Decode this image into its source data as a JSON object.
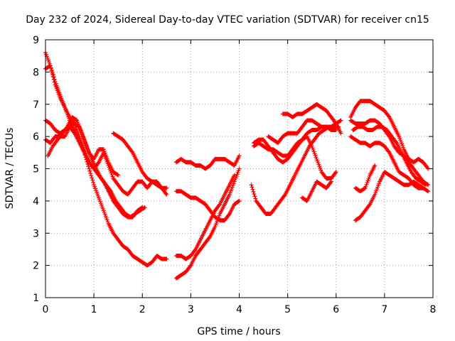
{
  "chart_data": {
    "type": "scatter",
    "title": "Day 232 of 2024, Sidereal Day-to-day VTEC variation (SDTVAR) for receiver cn15",
    "xlabel": "GPS time / hours",
    "ylabel": "SDTVAR / TECUs",
    "xlim": [
      0,
      8
    ],
    "ylim": [
      1,
      9
    ],
    "xticks": [
      "0",
      "1",
      "2",
      "3",
      "4",
      "5",
      "6",
      "7",
      "8"
    ],
    "yticks": [
      "1",
      "2",
      "3",
      "4",
      "5",
      "6",
      "7",
      "8",
      "9"
    ],
    "grid": true,
    "marker": "plus",
    "color": "#ff0000",
    "series": [
      {
        "x": [
          0.0,
          0.1,
          0.2,
          0.3,
          0.4,
          0.5,
          0.6,
          0.7,
          0.8,
          0.9,
          1.0,
          1.1,
          1.2,
          1.3,
          1.4,
          1.5,
          1.6,
          1.7,
          1.8,
          1.9,
          2.0,
          2.1,
          2.2,
          2.3,
          2.4,
          2.5
        ],
        "y": [
          8.6,
          8.2,
          7.7,
          7.3,
          6.9,
          6.5,
          6.2,
          5.9,
          5.5,
          5.0,
          4.5,
          4.1,
          3.7,
          3.3,
          3.0,
          2.8,
          2.6,
          2.5,
          2.3,
          2.2,
          2.1,
          2.0,
          2.1,
          2.3,
          2.2,
          2.2
        ]
      },
      {
        "x": [
          0.0,
          0.1,
          0.2,
          0.3,
          0.4,
          0.5,
          0.6,
          0.7,
          0.8,
          0.9,
          1.0,
          1.1,
          1.2,
          1.3,
          1.4,
          1.5,
          1.6,
          1.7,
          1.8,
          1.9,
          2.0
        ],
        "y": [
          8.1,
          8.2,
          7.6,
          7.2,
          6.9,
          6.6,
          6.4,
          6.0,
          5.6,
          5.2,
          5.0,
          4.8,
          4.6,
          4.3,
          4.0,
          3.8,
          3.6,
          3.5,
          3.5,
          3.7,
          3.8
        ]
      },
      {
        "x": [
          0.0,
          0.1,
          0.2,
          0.3,
          0.4,
          0.5,
          0.6,
          0.7,
          0.8,
          0.9,
          1.0,
          1.1,
          1.2,
          1.3,
          1.4,
          1.5,
          1.6,
          1.7,
          1.8,
          1.9,
          2.0,
          2.1,
          2.2,
          2.3,
          2.4,
          2.5
        ],
        "y": [
          6.5,
          6.4,
          6.2,
          6.1,
          6.2,
          6.3,
          6.1,
          5.8,
          5.5,
          5.2,
          5.0,
          5.2,
          5.5,
          5.1,
          4.7,
          4.5,
          4.3,
          4.2,
          4.4,
          4.6,
          4.6,
          4.4,
          4.6,
          4.6,
          4.4,
          4.2
        ]
      },
      {
        "x": [
          0.0,
          0.1,
          0.2,
          0.3,
          0.4,
          0.5,
          0.6,
          0.7,
          0.8,
          0.9,
          1.0,
          1.1,
          1.2,
          1.3,
          1.4,
          1.5
        ],
        "y": [
          5.9,
          5.8,
          6.0,
          6.0,
          6.0,
          6.3,
          6.4,
          6.3,
          5.9,
          5.5,
          5.3,
          5.6,
          5.6,
          5.2,
          4.9,
          4.8
        ]
      },
      {
        "x": [
          0.05,
          0.15,
          0.25,
          0.35,
          0.45,
          0.55,
          0.65,
          0.75,
          0.85,
          0.95,
          1.05,
          1.15,
          1.25,
          1.35,
          1.45,
          1.55,
          1.65,
          1.75,
          1.85,
          1.95,
          2.05
        ],
        "y": [
          5.4,
          5.7,
          5.9,
          6.1,
          6.3,
          6.6,
          6.5,
          6.1,
          5.7,
          5.3,
          5.0,
          4.7,
          4.5,
          4.3,
          4.0,
          3.8,
          3.6,
          3.5,
          3.6,
          3.7,
          3.8
        ]
      },
      {
        "x": [
          1.4,
          1.5,
          1.6,
          1.7,
          1.8,
          1.9,
          2.0,
          2.1,
          2.2,
          2.3,
          2.4,
          2.5
        ],
        "y": [
          6.1,
          6.0,
          5.9,
          5.7,
          5.5,
          5.2,
          4.9,
          4.7,
          4.6,
          4.5,
          4.4,
          4.4
        ]
      },
      {
        "x": [
          2.7,
          2.8,
          2.9,
          3.0,
          3.1,
          3.2,
          3.3,
          3.4,
          3.5,
          3.6,
          3.7,
          3.8,
          3.9,
          4.0
        ],
        "y": [
          5.2,
          5.3,
          5.2,
          5.2,
          5.1,
          5.1,
          5.0,
          5.1,
          5.3,
          5.3,
          5.3,
          5.2,
          5.1,
          5.4
        ]
      },
      {
        "x": [
          2.7,
          2.8,
          2.9,
          3.0,
          3.1,
          3.2,
          3.3,
          3.4,
          3.5,
          3.6,
          3.7,
          3.8,
          3.9,
          4.0
        ],
        "y": [
          4.3,
          4.3,
          4.2,
          4.1,
          4.1,
          4.0,
          3.9,
          3.7,
          3.5,
          3.4,
          3.4,
          3.6,
          3.9,
          4.0
        ]
      },
      {
        "x": [
          2.7,
          2.8,
          2.9,
          3.0,
          3.1,
          3.2,
          3.3,
          3.4,
          3.5,
          3.6,
          3.7,
          3.8,
          3.9
        ],
        "y": [
          2.3,
          2.3,
          2.2,
          2.3,
          2.5,
          2.8,
          3.1,
          3.4,
          3.7,
          3.9,
          4.2,
          4.5,
          4.8
        ]
      },
      {
        "x": [
          2.7,
          2.8,
          2.9,
          3.0,
          3.1,
          3.2,
          3.3,
          3.4,
          3.5,
          3.6,
          3.7,
          3.8,
          3.9,
          4.0
        ],
        "y": [
          1.6,
          1.7,
          1.8,
          2.0,
          2.3,
          2.5,
          2.7,
          2.9,
          3.2,
          3.6,
          3.9,
          4.2,
          4.6,
          5.0
        ]
      },
      {
        "x": [
          4.25,
          4.35,
          4.45,
          4.55,
          4.65,
          4.75,
          4.85,
          4.95,
          5.05,
          5.15,
          5.25,
          5.35,
          5.45,
          5.55,
          5.65,
          5.75,
          5.85,
          5.95,
          6.05
        ],
        "y": [
          4.5,
          4.0,
          3.8,
          3.6,
          3.6,
          3.8,
          4.0,
          4.2,
          4.5,
          4.8,
          5.1,
          5.4,
          5.7,
          5.9,
          6.1,
          6.2,
          6.3,
          6.3,
          6.3
        ]
      },
      {
        "x": [
          4.3,
          4.4,
          4.5,
          4.6,
          4.7,
          4.8,
          4.9,
          5.0,
          5.1,
          5.2,
          5.3,
          5.4,
          5.5,
          5.6,
          5.7,
          5.8,
          5.9,
          6.0
        ],
        "y": [
          5.8,
          5.9,
          5.9,
          5.7,
          5.5,
          5.3,
          5.2,
          5.3,
          5.5,
          5.7,
          5.9,
          6.1,
          6.2,
          6.2,
          6.3,
          6.3,
          6.2,
          6.2
        ]
      },
      {
        "x": [
          4.3,
          4.4,
          4.5,
          4.6,
          4.7,
          4.8,
          4.9,
          5.0,
          5.1,
          5.2,
          5.3,
          5.4,
          5.5,
          5.6,
          5.7,
          5.8,
          5.9,
          6.0
        ],
        "y": [
          5.7,
          5.8,
          5.7,
          5.6,
          5.6,
          5.5,
          5.4,
          5.4,
          5.6,
          5.8,
          5.9,
          6.0,
          5.7,
          5.3,
          4.9,
          4.7,
          4.7,
          4.9
        ]
      },
      {
        "x": [
          4.6,
          4.7,
          4.8,
          4.9,
          5.0,
          5.1,
          5.2,
          5.3,
          5.4,
          5.5,
          5.6,
          5.7,
          5.8,
          5.9,
          6.0,
          6.1
        ],
        "y": [
          6.0,
          5.9,
          5.8,
          6.0,
          6.1,
          6.1,
          6.1,
          6.3,
          6.5,
          6.5,
          6.4,
          6.3,
          6.3,
          6.3,
          6.4,
          6.5
        ]
      },
      {
        "x": [
          4.9,
          5.0,
          5.1,
          5.2,
          5.3,
          5.4,
          5.5,
          5.6,
          5.7,
          5.8,
          5.9,
          6.0,
          6.1
        ],
        "y": [
          6.7,
          6.7,
          6.6,
          6.7,
          6.7,
          6.8,
          6.9,
          7.0,
          6.9,
          6.8,
          6.6,
          6.4,
          6.1
        ]
      },
      {
        "x": [
          5.3,
          5.4,
          5.5,
          5.6,
          5.7,
          5.8,
          5.9
        ],
        "y": [
          4.1,
          4.0,
          4.3,
          4.6,
          4.5,
          4.4,
          4.6
        ]
      },
      {
        "x": [
          6.3,
          6.4,
          6.5,
          6.6,
          6.7,
          6.8,
          6.9,
          7.0,
          7.1,
          7.2,
          7.3,
          7.4,
          7.5,
          7.6,
          7.7,
          7.8,
          7.9
        ],
        "y": [
          6.6,
          6.9,
          7.1,
          7.1,
          7.1,
          7.0,
          6.9,
          6.8,
          6.6,
          6.3,
          6.0,
          5.6,
          5.3,
          5.2,
          5.3,
          5.2,
          5.0
        ]
      },
      {
        "x": [
          6.3,
          6.4,
          6.5,
          6.6,
          6.7,
          6.8,
          6.9,
          7.0,
          7.1,
          7.2,
          7.3,
          7.4,
          7.5,
          7.6,
          7.7,
          7.8,
          7.9
        ],
        "y": [
          6.5,
          6.4,
          6.4,
          6.4,
          6.5,
          6.5,
          6.4,
          6.2,
          6.0,
          5.7,
          5.5,
          5.4,
          5.2,
          5.0,
          4.8,
          4.6,
          4.5
        ]
      },
      {
        "x": [
          6.3,
          6.4,
          6.5,
          6.6,
          6.7,
          6.8,
          6.9,
          7.0,
          7.1,
          7.2,
          7.3,
          7.4,
          7.5,
          7.6,
          7.7,
          7.8,
          7.9
        ],
        "y": [
          6.0,
          5.9,
          5.8,
          5.8,
          5.7,
          5.8,
          5.8,
          5.7,
          5.5,
          5.2,
          4.9,
          4.8,
          4.7,
          4.5,
          4.4,
          4.4,
          4.3
        ]
      },
      {
        "x": [
          6.35,
          6.45,
          6.55,
          6.65,
          6.75,
          6.85,
          6.95,
          7.05,
          7.15,
          7.25,
          7.35,
          7.45,
          7.55,
          7.65,
          7.75,
          7.85
        ],
        "y": [
          6.2,
          6.3,
          6.3,
          6.2,
          6.2,
          6.3,
          6.3,
          6.2,
          6.0,
          5.8,
          5.5,
          5.2,
          4.9,
          4.7,
          4.6,
          4.5
        ]
      },
      {
        "x": [
          6.4,
          6.5,
          6.6,
          6.7,
          6.8,
          6.9,
          7.0,
          7.1,
          7.2,
          7.3,
          7.4,
          7.5,
          7.6,
          7.7,
          7.8
        ],
        "y": [
          3.4,
          3.5,
          3.7,
          3.9,
          4.2,
          4.6,
          4.9,
          4.8,
          4.7,
          4.6,
          4.5,
          4.5,
          4.6,
          4.5,
          4.4
        ]
      },
      {
        "x": [
          6.4,
          6.5,
          6.6,
          6.7,
          6.8
        ],
        "y": [
          4.4,
          4.3,
          4.4,
          4.8,
          5.1
        ]
      }
    ]
  }
}
